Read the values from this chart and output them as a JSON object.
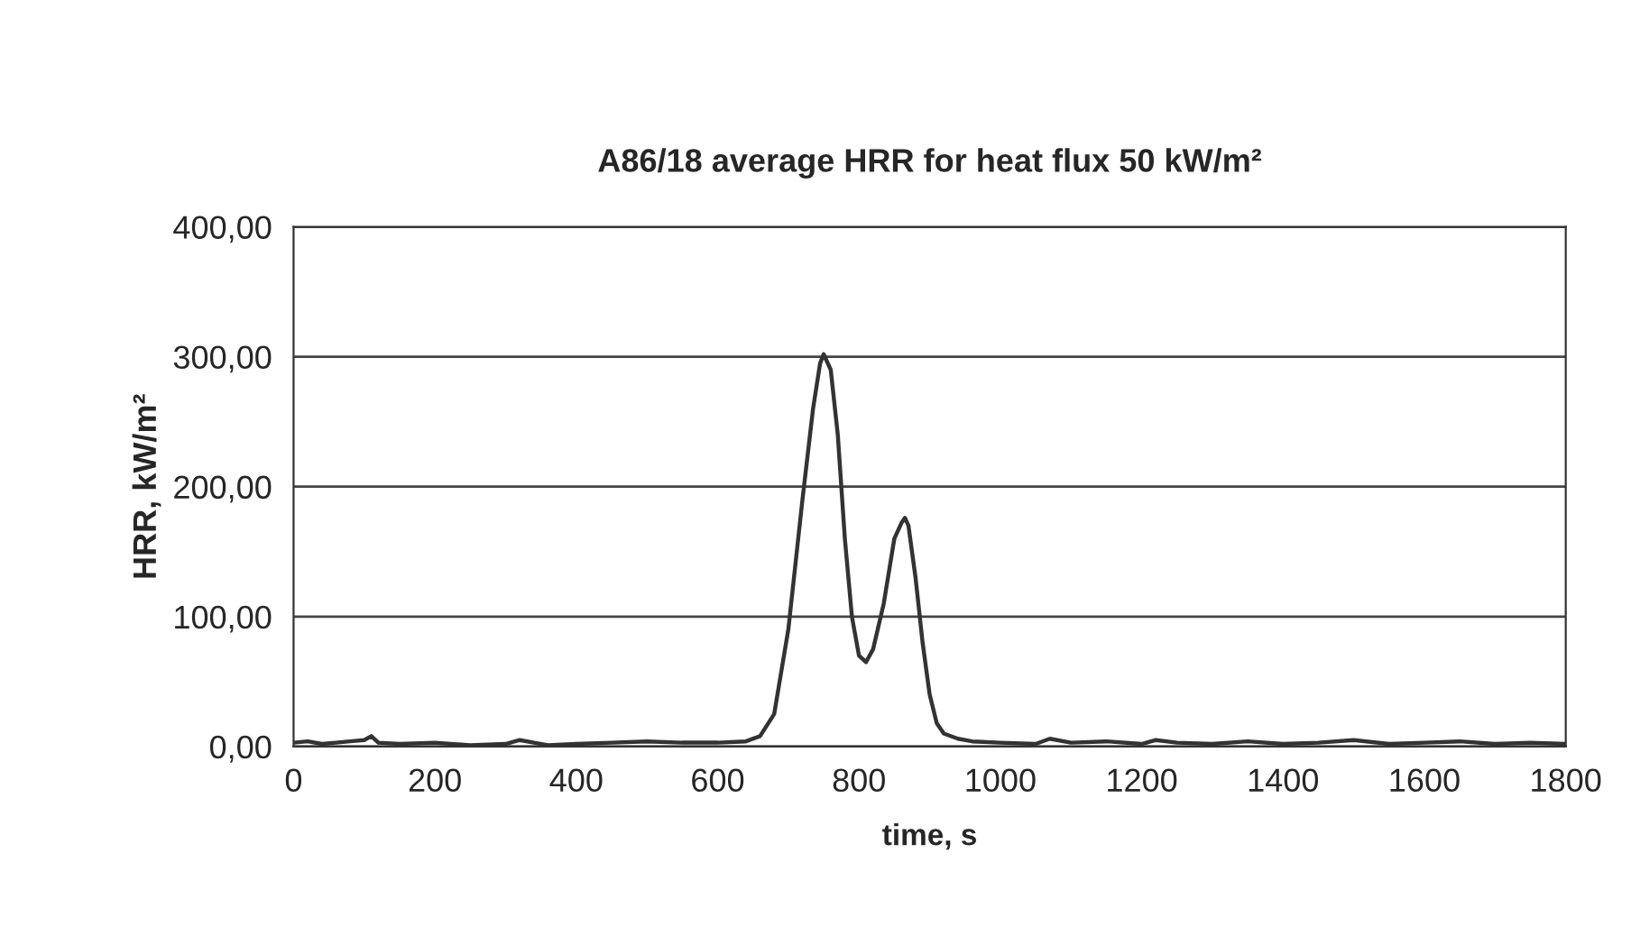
{
  "chart_data": {
    "type": "line",
    "title": "A86/18 average HRR for heat flux 50 kW/m²",
    "xlabel": "time, s",
    "ylabel": "HRR, kW/m²",
    "x": [
      0,
      20,
      40,
      60,
      80,
      100,
      110,
      120,
      150,
      200,
      250,
      300,
      320,
      340,
      360,
      400,
      450,
      500,
      550,
      600,
      640,
      660,
      680,
      700,
      720,
      735,
      745,
      750,
      760,
      770,
      780,
      790,
      800,
      810,
      820,
      835,
      850,
      860,
      865,
      870,
      880,
      890,
      900,
      910,
      920,
      940,
      960,
      1000,
      1050,
      1070,
      1100,
      1150,
      1200,
      1220,
      1250,
      1300,
      1350,
      1400,
      1450,
      1500,
      1550,
      1600,
      1650,
      1700,
      1750,
      1800
    ],
    "series": [
      {
        "color": "#333333",
        "values": [
          3,
          4,
          2,
          3,
          4,
          5,
          8,
          3,
          2,
          3,
          1,
          2,
          5,
          3,
          1,
          2,
          3,
          4,
          3,
          3,
          4,
          8,
          25,
          90,
          190,
          260,
          295,
          302,
          290,
          240,
          160,
          100,
          70,
          65,
          75,
          110,
          160,
          172,
          176,
          170,
          130,
          80,
          40,
          18,
          10,
          6,
          4,
          3,
          2,
          6,
          3,
          4,
          2,
          5,
          3,
          2,
          4,
          2,
          3,
          5,
          2,
          3,
          4,
          2,
          3,
          2
        ]
      }
    ],
    "xlim": [
      0,
      1800
    ],
    "xticks": [
      0,
      200,
      400,
      600,
      800,
      1000,
      1200,
      1400,
      1600,
      1800
    ],
    "ylim": [
      0,
      400
    ],
    "yticks": [
      {
        "value": 0,
        "label": "0,00"
      },
      {
        "value": 100,
        "label": "100,00"
      },
      {
        "value": 200,
        "label": "200,00"
      },
      {
        "value": 300,
        "label": "300,00"
      },
      {
        "value": 400,
        "label": "400,00"
      }
    ],
    "grid": "y",
    "marker": "none",
    "line_style": "solid"
  }
}
